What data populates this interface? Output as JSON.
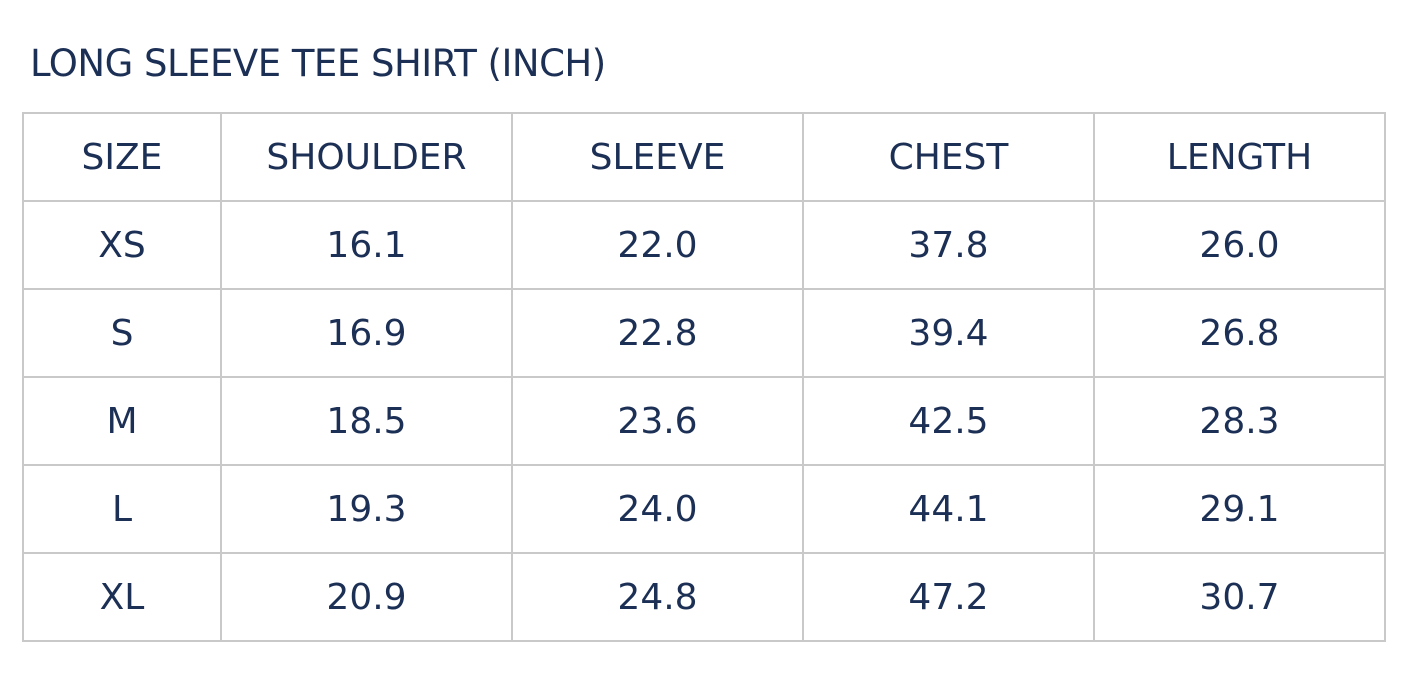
{
  "title": "LONG SLEEVE TEE SHIRT (INCH)",
  "colors": {
    "text": "#1c2f55",
    "border": "#c9c9c9"
  },
  "table": {
    "headers": [
      "SIZE",
      "SHOULDER",
      "SLEEVE",
      "CHEST",
      "LENGTH"
    ],
    "rows": [
      [
        "XS",
        "16.1",
        "22.0",
        "37.8",
        "26.0"
      ],
      [
        "S",
        "16.9",
        "22.8",
        "39.4",
        "26.8"
      ],
      [
        "M",
        "18.5",
        "23.6",
        "42.5",
        "28.3"
      ],
      [
        "L",
        "19.3",
        "24.0",
        "44.1",
        "29.1"
      ],
      [
        "XL",
        "20.9",
        "24.8",
        "47.2",
        "30.7"
      ]
    ]
  }
}
